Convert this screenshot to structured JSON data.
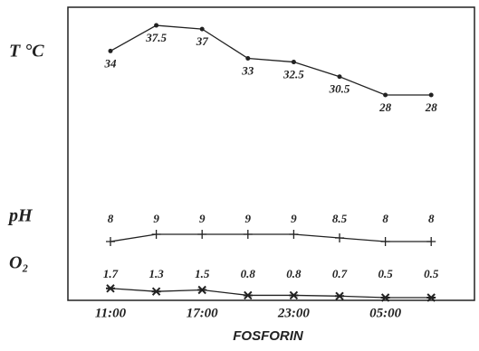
{
  "chart_data": {
    "type": "line",
    "x_title": "FOSFORIN",
    "categories": [
      "11:00",
      null,
      "17:00",
      null,
      "23:00",
      null,
      "05:00",
      null
    ],
    "series": [
      {
        "name": "T °C",
        "color": "#222222",
        "marker": "dot",
        "values": [
          34,
          37.5,
          37,
          33,
          32.5,
          30.5,
          28,
          28
        ]
      },
      {
        "name": "pH",
        "color": "#222222",
        "marker": "plus",
        "values": [
          8,
          9,
          9,
          9,
          9,
          8.5,
          8,
          8
        ]
      },
      {
        "name": "O₂",
        "color": "#222222",
        "marker": "star",
        "values": [
          1.7,
          1.3,
          1.5,
          0.8,
          0.8,
          0.7,
          0.5,
          0.5
        ]
      }
    ]
  }
}
